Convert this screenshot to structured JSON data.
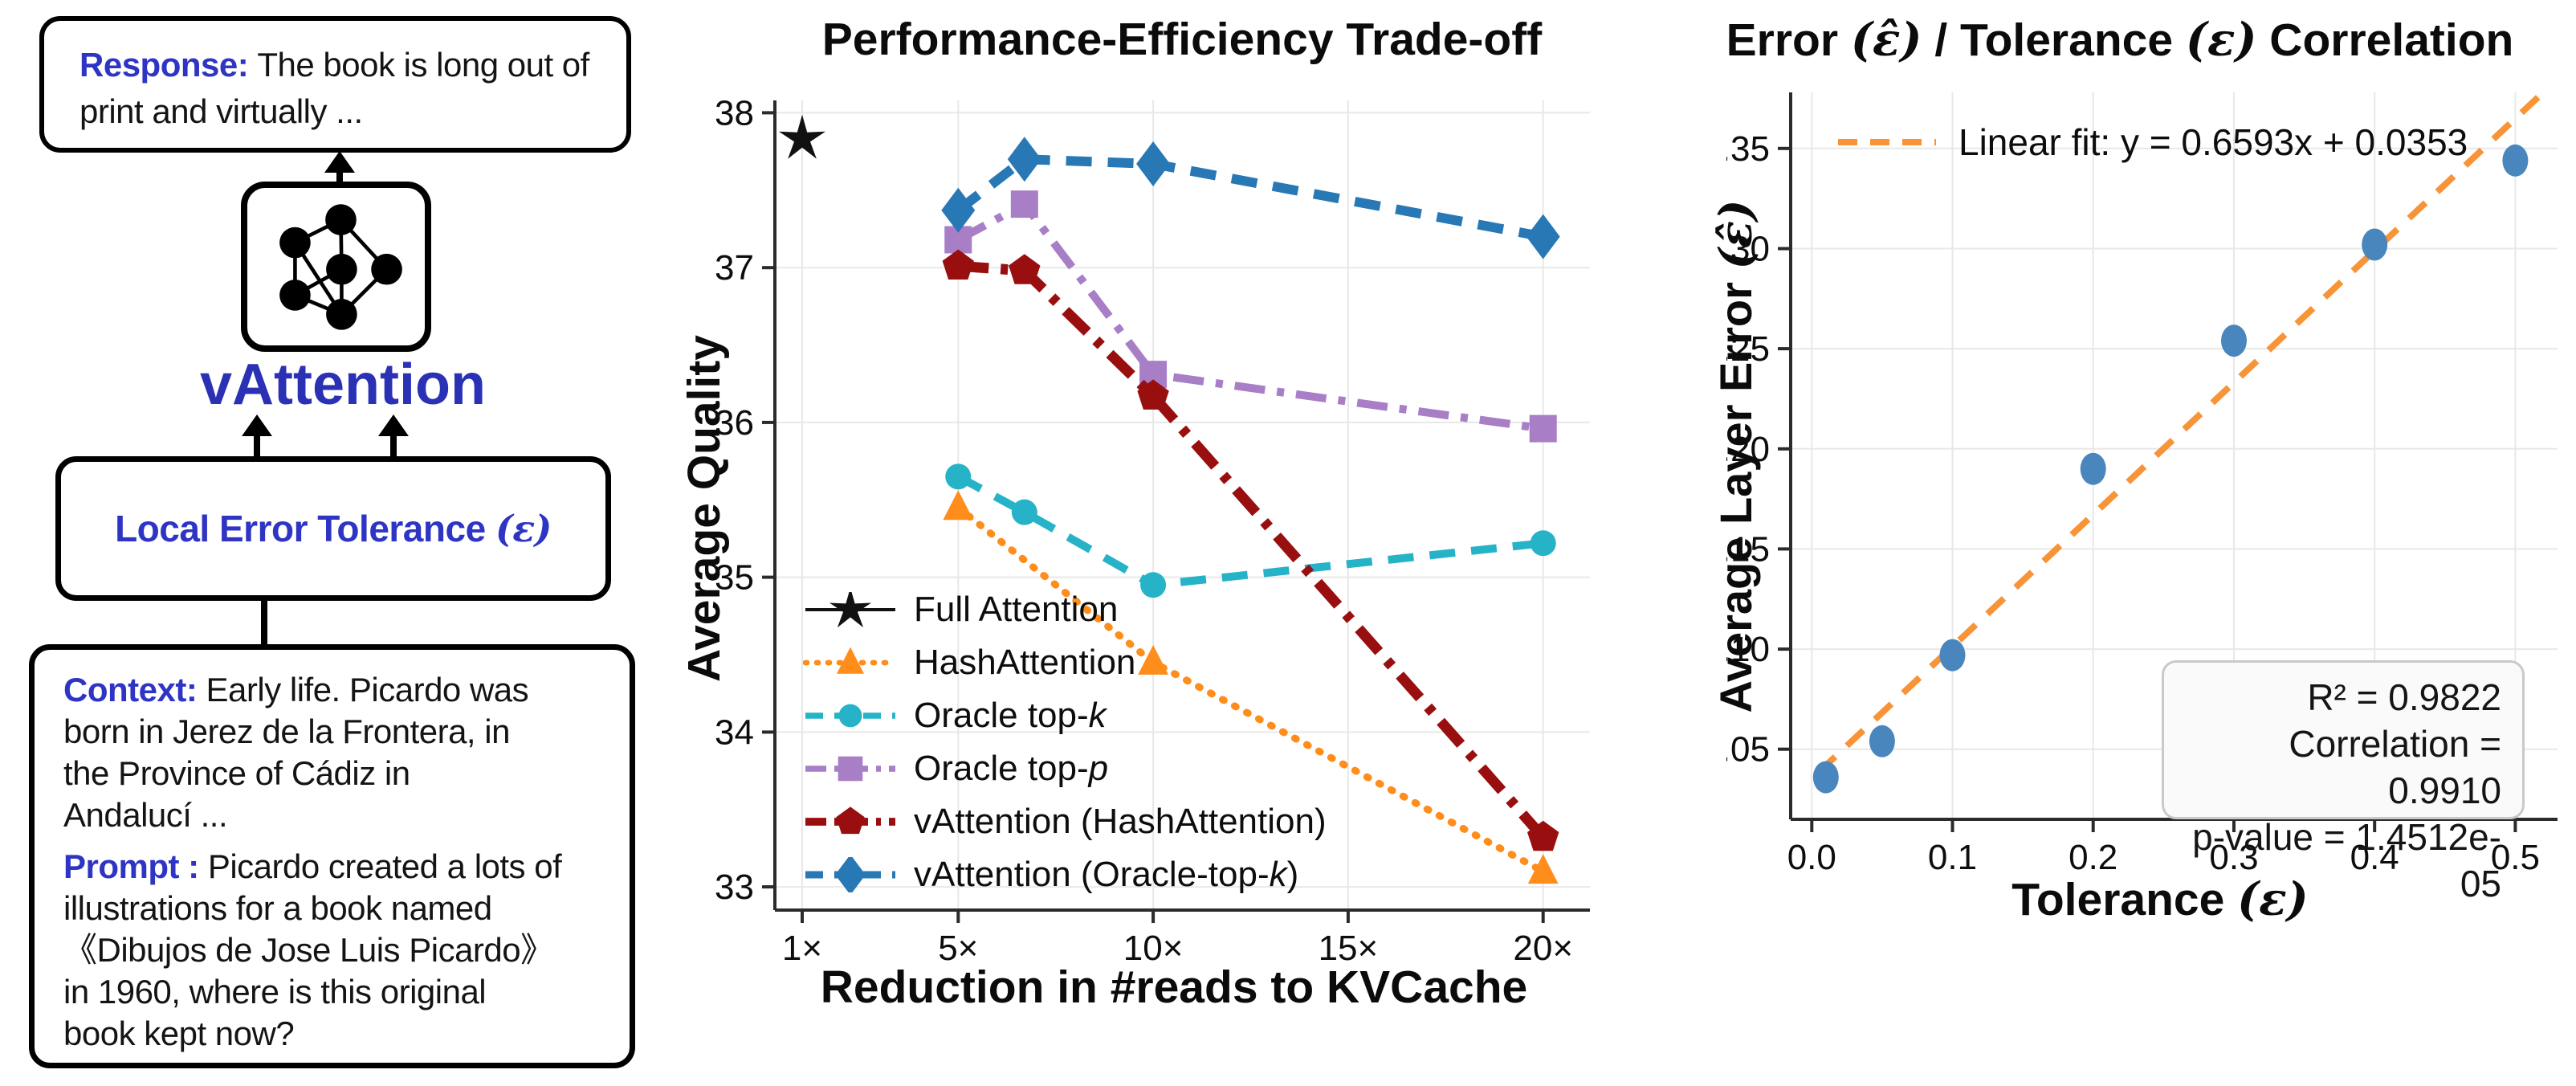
{
  "left_panel": {
    "response_label": "Response: ",
    "response_text": "The book is long out of\nprint and virtually ...",
    "model_name": "vAttention",
    "tolerance_label": "Local Error Tolerance ",
    "tolerance_symbol": "(ε)",
    "context_label": "Context: ",
    "context_text": "Early life. Picardo was\nborn in Jerez de la Frontera, in\nthe Province of Cádiz in\nAndalucí  ...",
    "prompt_label": "Prompt : ",
    "prompt_text": "Picardo created a lots of\nillustrations for a book named\n《Dibujos de Jose Luis Picardo》\nin 1960, where is this original\nbook kept now?"
  },
  "icons": {
    "model_icon": "neural-network-icon",
    "arrow_icon": "arrow-up-icon"
  },
  "chart_data": [
    {
      "type": "line",
      "title": "Performance-Efficiency Trade-off",
      "xlabel": "Reduction in #reads to KVCache",
      "ylabel": "Average Quality",
      "xlim": [
        0.3,
        21.2
      ],
      "ylim": [
        32.85,
        38.08
      ],
      "grid": true,
      "legend_position": "lower left",
      "x_ticks": [
        [
          1,
          "1×"
        ],
        [
          5,
          "5×"
        ],
        [
          10,
          "10×"
        ],
        [
          15,
          "15×"
        ],
        [
          20,
          "20×"
        ]
      ],
      "y_ticks": [
        [
          33,
          "33"
        ],
        [
          34,
          "34"
        ],
        [
          35,
          "35"
        ],
        [
          36,
          "36"
        ],
        [
          37,
          "37"
        ],
        [
          38,
          "38"
        ]
      ],
      "series": [
        {
          "name": "Full Attention",
          "color": "#111111",
          "marker": "star",
          "line": "solid",
          "lw": 5,
          "points": [
            [
              1,
              37.83
            ]
          ]
        },
        {
          "name": "HashAttention",
          "color": "#fe8d1c",
          "marker": "triangle",
          "line": "dotted",
          "lw": 9,
          "points": [
            [
              5,
              35.45
            ],
            [
              10,
              34.45
            ],
            [
              20,
              33.1
            ]
          ]
        },
        {
          "name": "Oracle top-k",
          "color": "#26b3c8",
          "marker": "circle",
          "line": "dashed",
          "lw": 10,
          "points": [
            [
              5,
              35.65
            ],
            [
              6.7,
              35.42
            ],
            [
              10,
              34.95
            ],
            [
              20,
              35.22
            ]
          ]
        },
        {
          "name": "Oracle top-p",
          "color": "#a87ec6",
          "marker": "square",
          "line": "dashdot",
          "lw": 10,
          "points": [
            [
              5,
              37.18
            ],
            [
              6.7,
              37.41
            ],
            [
              10,
              36.31
            ],
            [
              20,
              35.96
            ]
          ]
        },
        {
          "name": "vAttention (HashAttention)",
          "color": "#990f0f",
          "marker": "pentagon",
          "line": "dashdot",
          "lw": 13,
          "points": [
            [
              5,
              37.01
            ],
            [
              6.7,
              36.98
            ],
            [
              10,
              36.17
            ],
            [
              20,
              33.32
            ]
          ]
        },
        {
          "name": "vAttention (Oracle-top-k)",
          "color": "#2878b5",
          "marker": "diamond",
          "line": "dashed",
          "lw": 12,
          "points": [
            [
              5,
              37.37
            ],
            [
              6.7,
              37.7
            ],
            [
              10,
              37.67
            ],
            [
              20,
              37.2
            ]
          ]
        }
      ]
    },
    {
      "type": "scatter",
      "title_parts": [
        [
          "t",
          "Error "
        ],
        [
          "s",
          "(ε̂)"
        ],
        [
          "t",
          " / Tolerance "
        ],
        [
          "s",
          "(ε)"
        ],
        [
          "t",
          " Correlation"
        ]
      ],
      "xlabel_parts": [
        [
          "t",
          "Tolerance "
        ],
        [
          "s",
          "(ε)"
        ]
      ],
      "ylabel_parts": [
        [
          "t",
          "Average Layer Error "
        ],
        [
          "s",
          "(ε̂)"
        ]
      ],
      "xlim": [
        -0.015,
        0.53
      ],
      "ylim": [
        0.015,
        0.378
      ],
      "grid": true,
      "x_ticks": [
        [
          0,
          "0.0"
        ],
        [
          0.1,
          "0.1"
        ],
        [
          0.2,
          "0.2"
        ],
        [
          0.3,
          "0.3"
        ],
        [
          0.4,
          "0.4"
        ],
        [
          0.5,
          "0.5"
        ]
      ],
      "y_ticks": [
        [
          0.05,
          "0.05"
        ],
        [
          0.1,
          "0.10"
        ],
        [
          0.15,
          "0.15"
        ],
        [
          0.2,
          "0.20"
        ],
        [
          0.25,
          "0.25"
        ],
        [
          0.3,
          "0.30"
        ],
        [
          0.35,
          "0.35"
        ]
      ],
      "scatter": {
        "color": "#4a86be",
        "x": [
          0.01,
          0.05,
          0.1,
          0.2,
          0.3,
          0.4,
          0.5
        ],
        "y": [
          0.036,
          0.054,
          0.097,
          0.19,
          0.254,
          0.302,
          0.344
        ]
      },
      "fit_line": {
        "label": "Linear fit: y = 0.6593x + 0.0353",
        "color": "#f79438",
        "slope": 0.6593,
        "intercept": 0.0353,
        "x_range": [
          0.005,
          0.52
        ]
      },
      "stats": {
        "r_squared": "R² = 0.9822",
        "correlation": "Correlation = 0.9910",
        "p_value": "p-value = 1.4512e-05"
      }
    }
  ],
  "colors": {
    "label_blue": "#2e34c4",
    "model_blue": "#2b31b5",
    "grid": "#e8e8e8",
    "axis": "#2b2b2b",
    "scatter_blue": "#4a86be",
    "fit_orange": "#f79438"
  }
}
